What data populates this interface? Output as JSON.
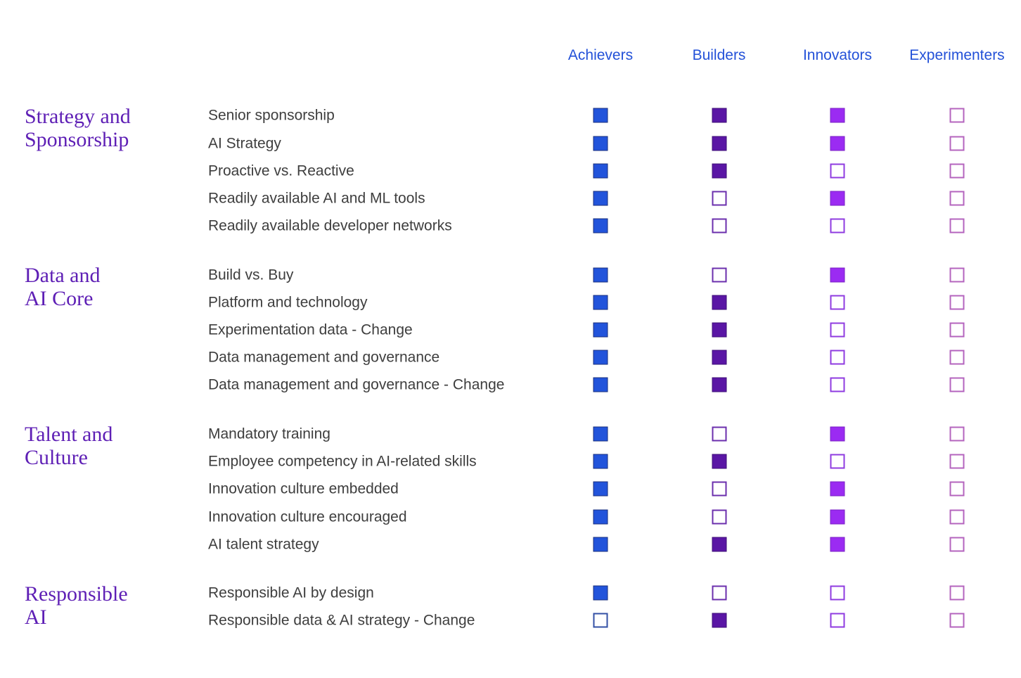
{
  "page": {
    "background": "#ffffff",
    "colors": {
      "column_header_text": "#2351d8",
      "group_label_text": "#5e1fb5",
      "row_label_text": "#3e3e3e"
    }
  },
  "chart_data": {
    "type": "table",
    "title": "",
    "legend_position": "top",
    "grid": false,
    "cell_symbol": "square",
    "cell_states": {
      "1": "filled",
      "0": "empty"
    },
    "columns": [
      {
        "label": "Achievers",
        "fill": "#2254db",
        "filled_edge": "#1a2f7c",
        "empty_edge": "#3350a5"
      },
      {
        "label": "Builders",
        "fill": "#5a16a5",
        "filled_edge": "#3e0f76",
        "empty_edge": "#6b2fad"
      },
      {
        "label": "Innovators",
        "fill": "#9b2bf2",
        "filled_edge": "#7a22c4",
        "empty_edge": "#8f3be0"
      },
      {
        "label": "Experimenters",
        "fill": "#b464be",
        "filled_edge": "#9a4aa6",
        "empty_edge": "#b464be"
      }
    ],
    "groups": [
      {
        "label": "Strategy and\nSponsorship",
        "rows": [
          {
            "label": "Senior sponsorship",
            "values": [
              1,
              1,
              1,
              0
            ]
          },
          {
            "label": "AI Strategy",
            "values": [
              1,
              1,
              1,
              0
            ]
          },
          {
            "label": "Proactive vs. Reactive",
            "values": [
              1,
              1,
              0,
              0
            ]
          },
          {
            "label": "Readily available AI and ML tools",
            "values": [
              1,
              0,
              1,
              0
            ]
          },
          {
            "label": "Readily available developer networks",
            "values": [
              1,
              0,
              0,
              0
            ]
          }
        ]
      },
      {
        "label": "Data and\nAI Core",
        "rows": [
          {
            "label": "Build vs. Buy",
            "values": [
              1,
              0,
              1,
              0
            ]
          },
          {
            "label": "Platform and technology",
            "values": [
              1,
              1,
              0,
              0
            ]
          },
          {
            "label": "Experimentation data - Change",
            "values": [
              1,
              1,
              0,
              0
            ]
          },
          {
            "label": "Data management and governance",
            "values": [
              1,
              1,
              0,
              0
            ]
          },
          {
            "label": "Data management and governance - Change",
            "values": [
              1,
              1,
              0,
              0
            ]
          }
        ]
      },
      {
        "label": "Talent and\nCulture",
        "rows": [
          {
            "label": "Mandatory training",
            "values": [
              1,
              0,
              1,
              0
            ]
          },
          {
            "label": "Employee competency in AI-related skills",
            "values": [
              1,
              1,
              0,
              0
            ]
          },
          {
            "label": "Innovation culture embedded",
            "values": [
              1,
              0,
              1,
              0
            ]
          },
          {
            "label": "Innovation culture encouraged",
            "values": [
              1,
              0,
              1,
              0
            ]
          },
          {
            "label": "AI talent strategy",
            "values": [
              1,
              1,
              1,
              0
            ]
          }
        ]
      },
      {
        "label": "Responsible\nAI",
        "rows": [
          {
            "label": "Responsible AI by design",
            "values": [
              1,
              0,
              0,
              0
            ]
          },
          {
            "label": "Responsible data & AI strategy - Change",
            "values": [
              0,
              1,
              0,
              0
            ]
          }
        ]
      }
    ]
  }
}
